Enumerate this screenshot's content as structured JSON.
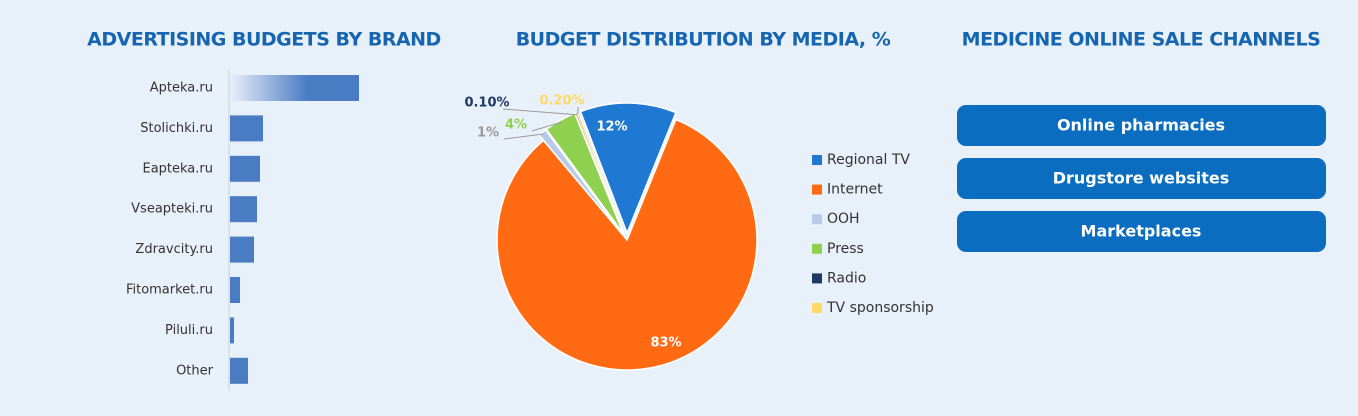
{
  "chart_data": [
    {
      "type": "bar",
      "orientation": "horizontal",
      "title": "ADVERTISING BUDGETS BY BRAND",
      "categories": [
        "Apteka.ru",
        "Stolichki.ru",
        "Eapteka.ru",
        "Vseapteki.ru",
        "Zdravcity.ru",
        "Fitomarket.ru",
        "Piluli.ru",
        "Other"
      ],
      "values": [
        129,
        33,
        30,
        27,
        24,
        10,
        4,
        18
      ],
      "color": "#4a7cc4"
    },
    {
      "type": "pie",
      "title": "BUDGET DISTRIBUTION BY MEDIA, %",
      "categories": [
        "Regional TV",
        "Internet",
        "OOH",
        "Press",
        "Radio",
        "TV sponsorship"
      ],
      "values": [
        12,
        83,
        1,
        4,
        0.1,
        0.2
      ],
      "value_labels": [
        "12%",
        "83%",
        "1%",
        "4%",
        "0.10%",
        "0.20%"
      ],
      "colors": [
        "#1f78d1",
        "#ff6a13",
        "#b7cbe8",
        "#8fd14f",
        "#1f3864",
        "#ffd966"
      ]
    }
  ],
  "channels": {
    "title": "MEDICINE ONLINE SALE CHANNELS",
    "items": [
      "Online pharmacies",
      "Drugstore websites",
      "Marketplaces"
    ]
  }
}
